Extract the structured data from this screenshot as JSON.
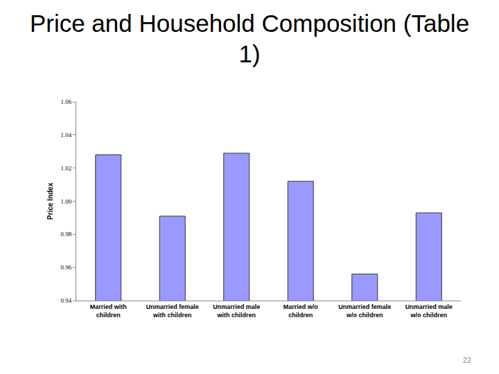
{
  "chart_data": {
    "type": "bar",
    "title": "Price and Household Composition (Table 1)",
    "y_label": "Price Index",
    "categories": [
      "Married with children",
      "Unmarried female with children",
      "Unmarried male with children",
      "Married w/o children",
      "Unmarried female w/o children",
      "Unmarried male w/o children"
    ],
    "values": [
      1.028,
      0.991,
      1.029,
      1.012,
      0.956,
      0.993
    ],
    "color": "#9999ff",
    "ylim": [
      0.94,
      1.06
    ],
    "yticks": [
      0.94,
      0.96,
      0.98,
      {
        "value": 1,
        "label": "1.00"
      },
      1.02,
      1.04,
      1.06
    ],
    "grid": false
  },
  "page_number": "22"
}
